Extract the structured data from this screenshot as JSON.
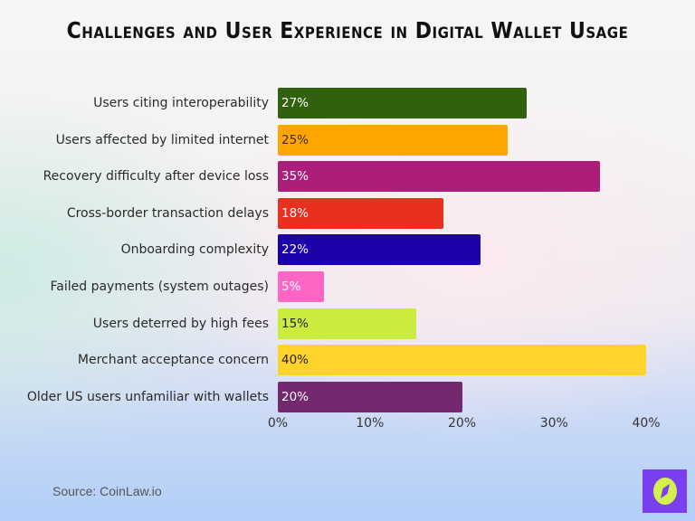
{
  "title": "Challenges and User Experience in Digital Wallet Usage",
  "source": "Source: CoinLaw.io",
  "logo": {
    "icon": "compass-icon",
    "bg_color": "#7b3ff2",
    "fg_color": "#d4f04a"
  },
  "chart_data": {
    "type": "bar",
    "orientation": "horizontal",
    "title": "Challenges and User Experience in Digital Wallet Usage",
    "xlabel": "",
    "ylabel": "",
    "xlim": [
      0,
      40
    ],
    "x_ticks": [
      "0%",
      "10%",
      "20%",
      "30%",
      "40%"
    ],
    "grid": false,
    "legend": null,
    "categories": [
      "Users citing interoperability",
      "Users affected by limited internet",
      "Recovery difficulty after device loss",
      "Cross-border transaction delays",
      "Onboarding complexity",
      "Failed payments (system outages)",
      "Users deterred by high fees",
      "Merchant acceptance concern",
      "Older US users unfamiliar with wallets"
    ],
    "values": [
      27,
      25,
      35,
      18,
      22,
      5,
      15,
      40,
      20
    ],
    "value_labels": [
      "27%",
      "25%",
      "35%",
      "18%",
      "22%",
      "5%",
      "15%",
      "40%",
      "20%"
    ],
    "colors": [
      "#31600f",
      "#ffa500",
      "#ab1e79",
      "#e9301f",
      "#1c00a8",
      "#ff66c4",
      "#c9ec3f",
      "#ffd32a",
      "#742870"
    ],
    "label_colors": [
      "#ffffff",
      "#3a2a00",
      "#ffffff",
      "#ffffff",
      "#ffffff",
      "#ffffff",
      "#222222",
      "#222222",
      "#ffffff"
    ],
    "source": "Source: CoinLaw.io"
  }
}
